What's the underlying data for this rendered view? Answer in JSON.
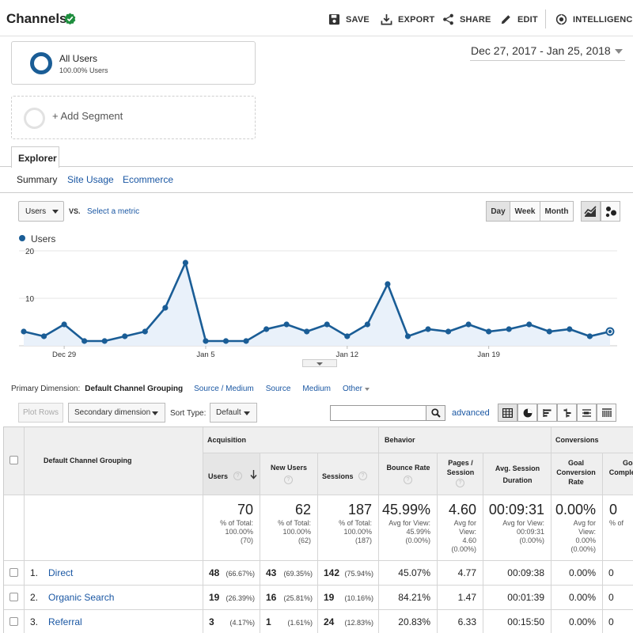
{
  "header": {
    "title": "Channels",
    "tools": [
      "SAVE",
      "EXPORT",
      "SHARE",
      "EDIT",
      "INTELLIGENCE"
    ]
  },
  "segments": {
    "all_users": {
      "title": "All Users",
      "subtitle": "100.00% Users"
    },
    "add_label": "+ Add Segment"
  },
  "date_range": "Dec 27, 2017 - Jan 25, 2018",
  "explorer": {
    "tab": "Explorer",
    "subtabs": [
      "Summary",
      "Site Usage",
      "Ecommerce"
    ]
  },
  "chart_controls": {
    "metric": "Users",
    "vs": "VS.",
    "select_metric": "Select a metric",
    "periods": [
      "Day",
      "Week",
      "Month"
    ],
    "active_period": "Day"
  },
  "chart_data": {
    "type": "area",
    "series": [
      {
        "name": "Users",
        "values": [
          3,
          2,
          4.5,
          1,
          1,
          2,
          3,
          8,
          17.5,
          1,
          1,
          1,
          3.5,
          4.5,
          3,
          4.5,
          2,
          4.5,
          13,
          2,
          3.5,
          3,
          4.5,
          3,
          3.5,
          4.5,
          3,
          3.5,
          2,
          3
        ]
      }
    ],
    "x_tick_labels": [
      "Dec 29",
      "Jan 5",
      "Jan 12",
      "Jan 19"
    ],
    "y_tick_labels": [
      "10",
      "20"
    ],
    "ylim": [
      0,
      20
    ],
    "color": "#1a5d96"
  },
  "dimensions": {
    "label": "Primary Dimension:",
    "active": "Default Channel Grouping",
    "options": [
      "Source / Medium",
      "Source",
      "Medium",
      "Other"
    ]
  },
  "table_toolbar": {
    "plot_rows": "Plot Rows",
    "secondary_dimension": "Secondary dimension",
    "sort_type_label": "Sort Type:",
    "sort_type": "Default",
    "advanced": "advanced"
  },
  "table": {
    "dimension_header": "Default Channel Grouping",
    "groups": [
      "Acquisition",
      "Behavior",
      "Conversions"
    ],
    "columns": [
      "Users",
      "New Users",
      "Sessions",
      "Bounce Rate",
      "Pages / Session",
      "Avg. Session Duration",
      "Goal Conversion Rate",
      "Goal Completions"
    ],
    "totals": [
      {
        "value": "70",
        "l1": "% of Total:",
        "l2": "100.00%",
        "l3": "(70)"
      },
      {
        "value": "62",
        "l1": "% of Total:",
        "l2": "100.00%",
        "l3": "(62)"
      },
      {
        "value": "187",
        "l1": "% of Total:",
        "l2": "100.00%",
        "l3": "(187)"
      },
      {
        "value": "45.99%",
        "l1": "Avg for View:",
        "l2": "45.99%",
        "l3": "(0.00%)"
      },
      {
        "value": "4.60",
        "l1": "Avg for",
        "l2": "View:",
        "l3": "4.60",
        "l4": "(0.00%)"
      },
      {
        "value": "00:09:31",
        "l1": "Avg for View:",
        "l2": "00:09:31",
        "l3": "(0.00%)"
      },
      {
        "value": "0.00%",
        "l1": "Avg for",
        "l2": "View:",
        "l3": "0.00%",
        "l4": "(0.00%)"
      },
      {
        "value": "0",
        "l1": "% of",
        "l2": "",
        "l3": ""
      }
    ],
    "rows": [
      {
        "idx": "1.",
        "name": "Direct",
        "users": "48",
        "users_pct": "(66.67%)",
        "new_users": "43",
        "new_users_pct": "(69.35%)",
        "sessions": "142",
        "sessions_pct": "(75.94%)",
        "bounce": "45.07%",
        "pages": "4.77",
        "duration": "00:09:38",
        "conv": "0.00%",
        "goal": "0"
      },
      {
        "idx": "2.",
        "name": "Organic Search",
        "users": "19",
        "users_pct": "(26.39%)",
        "new_users": "16",
        "new_users_pct": "(25.81%)",
        "sessions": "19",
        "sessions_pct": "(10.16%)",
        "bounce": "84.21%",
        "pages": "1.47",
        "duration": "00:01:39",
        "conv": "0.00%",
        "goal": "0"
      },
      {
        "idx": "3.",
        "name": "Referral",
        "users": "3",
        "users_pct": "(4.17%)",
        "new_users": "1",
        "new_users_pct": "(1.61%)",
        "sessions": "24",
        "sessions_pct": "(12.83%)",
        "bounce": "20.83%",
        "pages": "6.33",
        "duration": "00:15:50",
        "conv": "0.00%",
        "goal": "0"
      }
    ]
  }
}
